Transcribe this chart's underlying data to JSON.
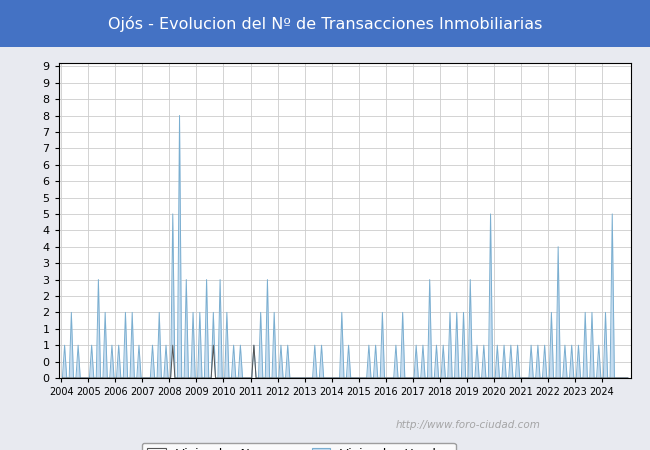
{
  "title": "Ojós - Evolucion del Nº de Transacciones Inmobiliarias",
  "title_bg_color": "#4472C4",
  "title_text_color": "#FFFFFF",
  "ylim": [
    0,
    9.5
  ],
  "bg_color": "#E8EAF0",
  "plot_bg_color": "#FFFFFF",
  "grid_color": "#CCCCCC",
  "watermark": "http://www.foro-ciudad.com",
  "nuevas_color": "#FFFFFF",
  "nuevas_edge_color": "#555555",
  "usadas_color": "#C5DCF0",
  "usadas_edge_color": "#7AAED0",
  "years": [
    2004,
    2005,
    2006,
    2007,
    2008,
    2009,
    2010,
    2011,
    2012,
    2013,
    2014,
    2015,
    2016,
    2017,
    2018,
    2019,
    2020,
    2021,
    2022,
    2023,
    2024
  ],
  "quarters_per_year": 4,
  "nuevas_data": [
    0,
    0,
    0,
    0,
    0,
    0,
    0,
    0,
    0,
    0,
    0,
    0,
    0,
    0,
    0,
    0,
    1,
    0,
    0,
    0,
    0,
    0,
    1,
    0,
    0,
    0,
    0,
    0,
    1,
    0,
    0,
    0,
    0,
    0,
    0,
    0,
    0,
    0,
    0,
    0,
    0,
    0,
    0,
    0,
    0,
    0,
    0,
    0,
    0,
    0,
    0,
    0,
    0,
    0,
    0,
    0,
    0,
    0,
    0,
    0,
    0,
    0,
    0,
    0,
    0,
    0,
    0,
    0,
    0,
    0,
    0,
    0,
    0,
    0,
    0,
    0,
    0,
    0,
    0,
    0,
    0,
    0,
    0,
    0
  ],
  "usadas_data": [
    1,
    2,
    1,
    0,
    1,
    3,
    2,
    1,
    1,
    2,
    2,
    1,
    0,
    1,
    2,
    1,
    5,
    8,
    3,
    2,
    2,
    3,
    2,
    3,
    2,
    1,
    1,
    0,
    1,
    2,
    3,
    2,
    1,
    1,
    0,
    0,
    0,
    1,
    1,
    0,
    0,
    2,
    1,
    0,
    0,
    1,
    1,
    2,
    0,
    1,
    2,
    0,
    1,
    1,
    3,
    1,
    1,
    2,
    2,
    2,
    3,
    1,
    1,
    5,
    1,
    1,
    1,
    1,
    0,
    1,
    1,
    1,
    2,
    4,
    1,
    1,
    1,
    2,
    2,
    1,
    2,
    5,
    0,
    0
  ]
}
